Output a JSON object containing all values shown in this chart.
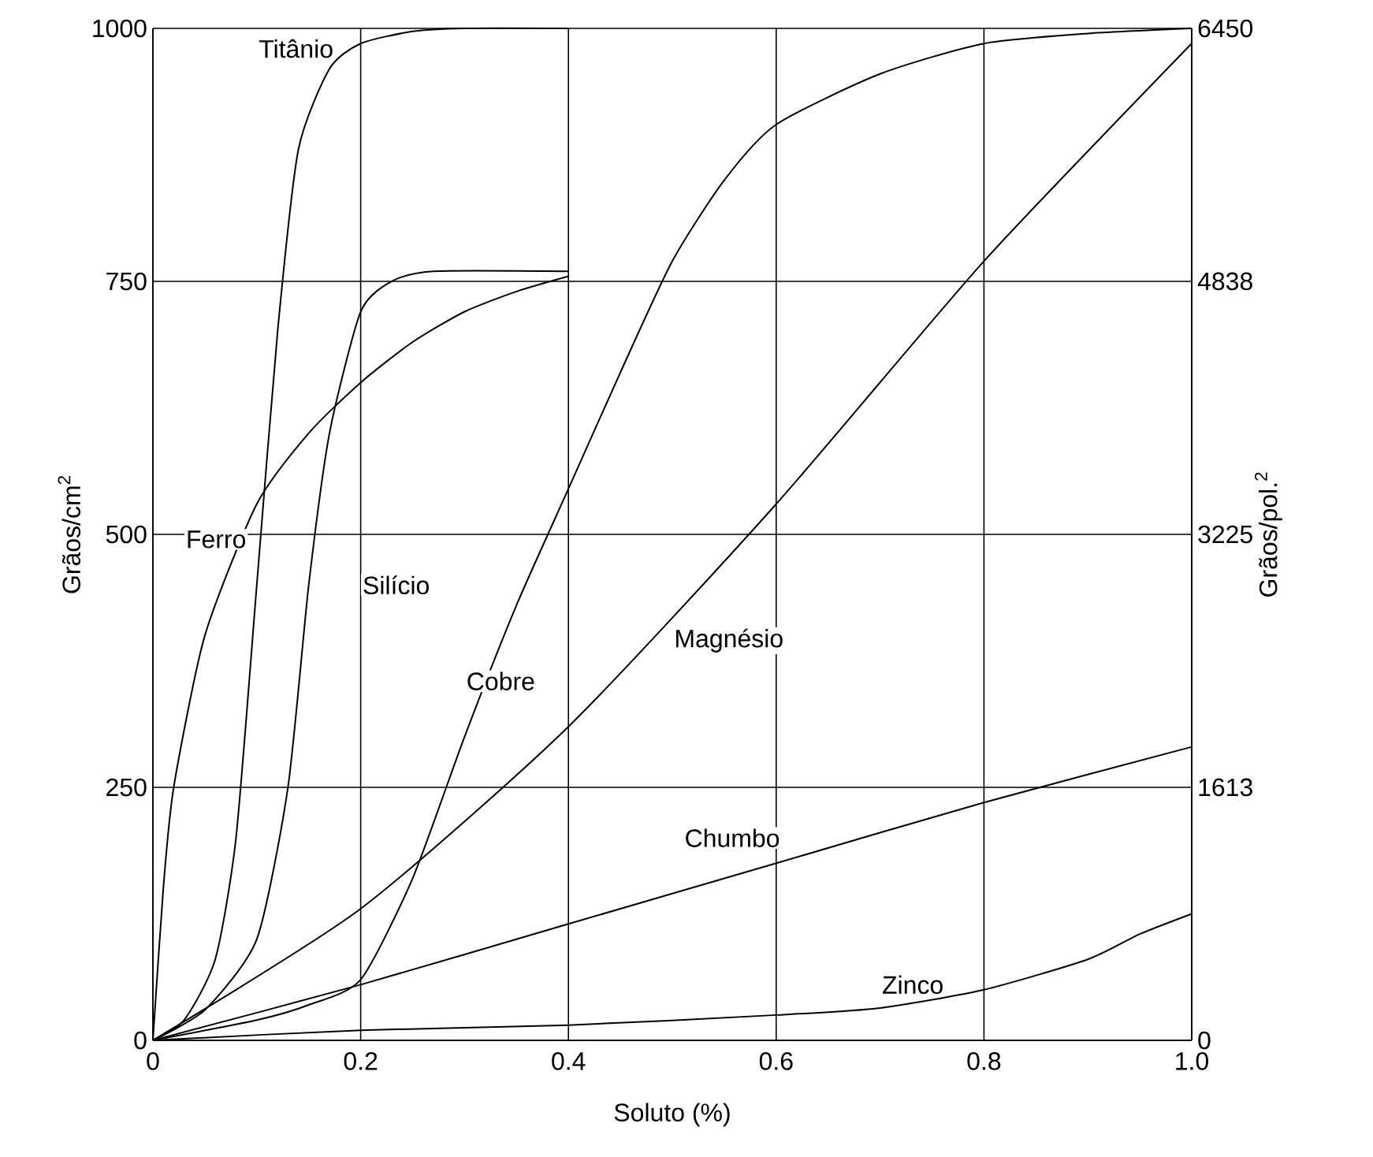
{
  "chart_data": {
    "type": "line",
    "xlabel": "Soluto (%)",
    "ylabel": "Grãos/cm$^{2}$",
    "y2label": "Grãos/pol.$^{2}$",
    "xlim": [
      0,
      1
    ],
    "xticks": [
      0,
      0.2,
      0.4,
      0.6,
      0.8,
      {
        "value": 1,
        "label": "1.0"
      }
    ],
    "ylim": [
      0,
      1000
    ],
    "yticks": [
      0,
      250,
      500,
      750,
      1000
    ],
    "y2lim": [
      0,
      6450
    ],
    "y2ticks": [
      0,
      1613,
      3225,
      4838,
      6450
    ],
    "grid": true,
    "marker": "none",
    "line_style": "solid",
    "series": [
      {
        "name": "Titânio",
        "color": "#000000",
        "x": [
          0,
          0.03,
          0.06,
          0.08,
          0.1,
          0.12,
          0.14,
          0.17,
          0.2,
          0.25,
          0.3,
          0.4
        ],
        "values": [
          0,
          20,
          80,
          200,
          450,
          700,
          880,
          960,
          985,
          997,
          1000,
          1000
        ]
      },
      {
        "name": "Ferro",
        "color": "#000000",
        "x": [
          0,
          0.01,
          0.02,
          0.05,
          0.1,
          0.15,
          0.2,
          0.25,
          0.3,
          0.35,
          0.4
        ],
        "values": [
          0,
          150,
          250,
          400,
          530,
          600,
          650,
          690,
          720,
          740,
          755
        ]
      },
      {
        "name": "Silício",
        "color": "#000000",
        "x": [
          0,
          0.05,
          0.1,
          0.13,
          0.15,
          0.17,
          0.2,
          0.23,
          0.27,
          0.4
        ],
        "values": [
          0,
          30,
          100,
          250,
          450,
          600,
          720,
          750,
          760,
          760
        ]
      },
      {
        "name": "Cobre",
        "color": "#000000",
        "x": [
          0,
          0.1,
          0.15,
          0.2,
          0.25,
          0.3,
          0.35,
          0.4,
          0.45,
          0.5,
          0.55,
          0.6,
          0.7,
          0.8,
          0.9,
          1.0
        ],
        "values": [
          0,
          20,
          35,
          60,
          160,
          300,
          430,
          545,
          660,
          770,
          850,
          905,
          955,
          985,
          995,
          1000
        ]
      },
      {
        "name": "Magnésio",
        "color": "#000000",
        "x": [
          0,
          0.2,
          0.4,
          0.6,
          0.8,
          1.0
        ],
        "values": [
          0,
          130,
          310,
          530,
          770,
          985
        ]
      },
      {
        "name": "Chumbo",
        "color": "#000000",
        "x": [
          0,
          0.2,
          0.4,
          0.6,
          0.8,
          1.0
        ],
        "values": [
          0,
          55,
          115,
          175,
          235,
          290
        ]
      },
      {
        "name": "Zinco",
        "color": "#000000",
        "x": [
          0,
          0.2,
          0.4,
          0.6,
          0.7,
          0.8,
          0.9,
          0.95,
          1.0
        ],
        "values": [
          0,
          10,
          15,
          25,
          32,
          50,
          80,
          105,
          125
        ]
      }
    ]
  }
}
